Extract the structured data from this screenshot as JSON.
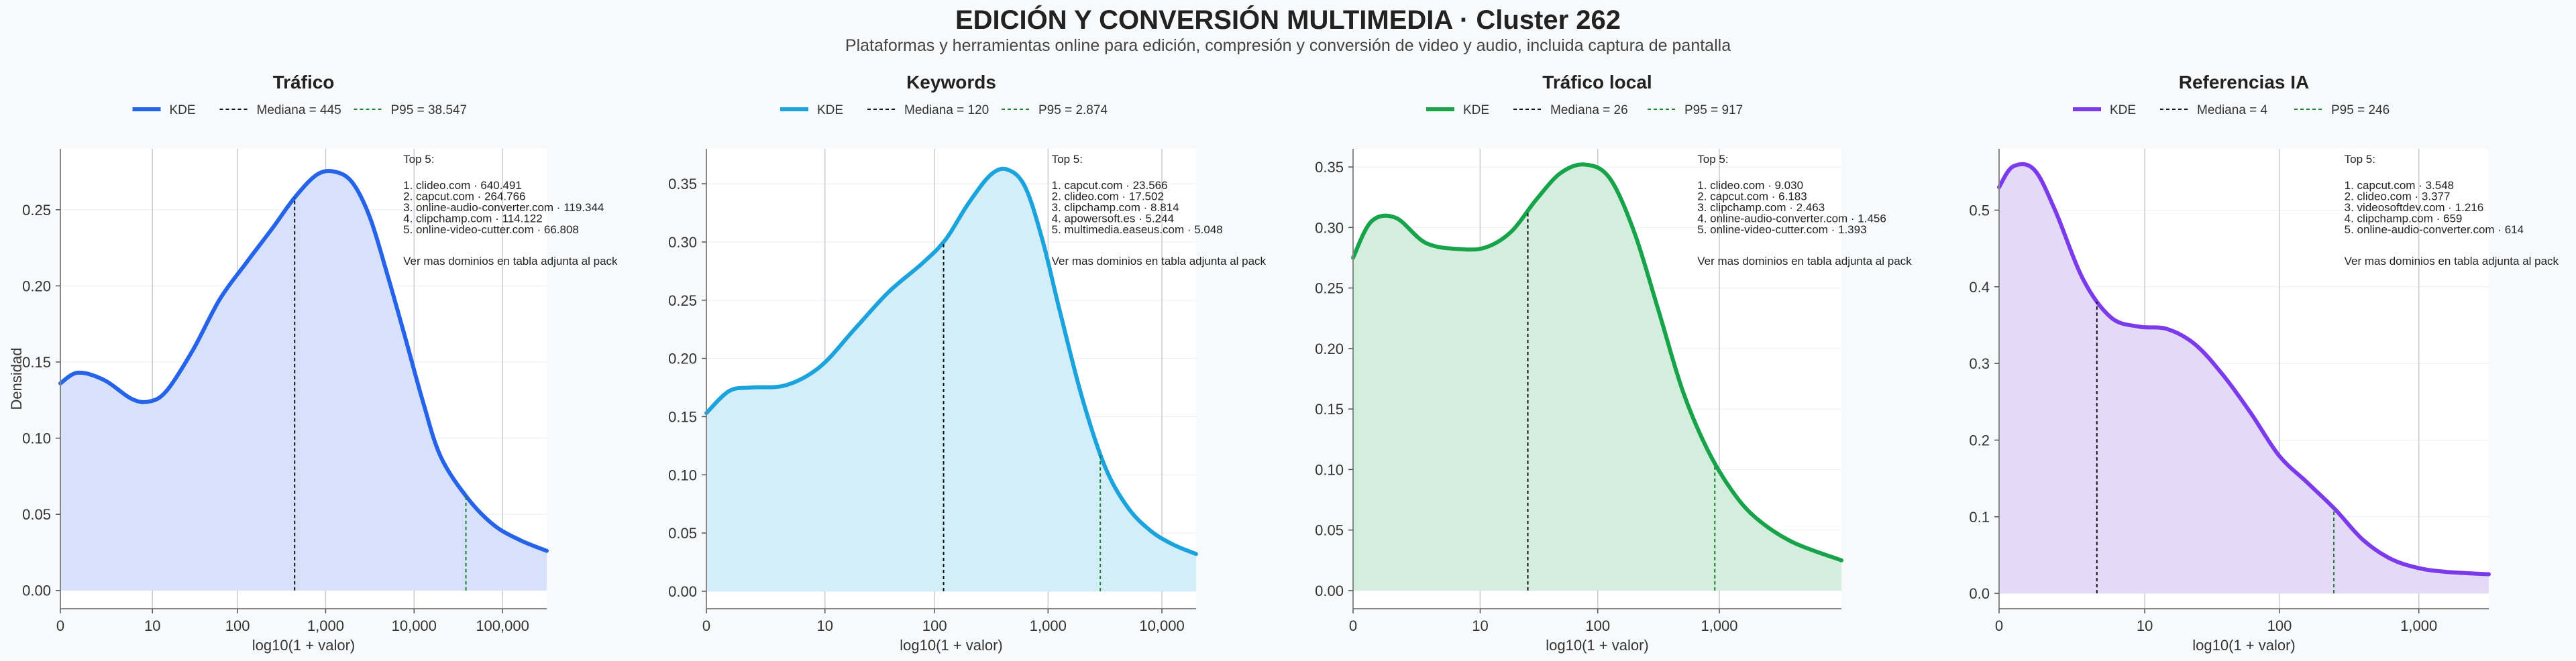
{
  "title": "EDICIÓN Y CONVERSIÓN MULTIMEDIA · Cluster 262",
  "subtitle": "Plataformas y herramientas online para edición, compresión y conversión de video y audio, incluida captura de pantalla",
  "ylabel": "Densidad",
  "xlabel": "log10(1 + valor)",
  "legend_labels": [
    "KDE",
    "Mediana",
    "P95"
  ],
  "top_heading": "Top 5:",
  "more_note": "Ver mas dominios en tabla adjunta al pack",
  "chart_data": [
    {
      "type": "area",
      "title": "Tráfico",
      "color": "#2563eb",
      "fill": "#d7e2fa",
      "legend": {
        "kde": "KDE",
        "median": "Mediana = 445",
        "p95": "P95 = 38.547"
      },
      "median": 445,
      "p95": 38547,
      "xlim": [
        0,
        5.5
      ],
      "ylim": [
        -0.012,
        0.29
      ],
      "x_ticks": [
        0,
        1.041,
        2.004,
        3,
        4,
        5
      ],
      "x_ticklabels": [
        "0",
        "10",
        "100",
        "1,000",
        "10,000",
        "100,000"
      ],
      "y_ticks": [
        0,
        0.05,
        0.1,
        0.15,
        0.2,
        0.25
      ],
      "y_ticklabels": [
        "0.00",
        "0.05",
        "0.10",
        "0.15",
        "0.20",
        "0.25"
      ],
      "kde_x": [
        0,
        0.2,
        0.5,
        0.8,
        1.0,
        1.2,
        1.5,
        1.8,
        2.1,
        2.4,
        2.65,
        2.9,
        3.1,
        3.3,
        3.5,
        3.7,
        3.9,
        4.1,
        4.3,
        4.6,
        4.9,
        5.2,
        5.5
      ],
      "kde_y": [
        0.136,
        0.143,
        0.138,
        0.126,
        0.124,
        0.131,
        0.158,
        0.191,
        0.215,
        0.238,
        0.258,
        0.273,
        0.275,
        0.268,
        0.245,
        0.207,
        0.166,
        0.124,
        0.088,
        0.061,
        0.043,
        0.033,
        0.026
      ],
      "top5": [
        "1. clideo.com · 640.491",
        "2. capcut.com · 264.766",
        "3. online-audio-converter.com · 119.344",
        "4. clipchamp.com · 114.122",
        "5. online-video-cutter.com · 66.808"
      ]
    },
    {
      "type": "area",
      "title": "Keywords",
      "color": "#1aa3dc",
      "fill": "#d3eef9",
      "legend": {
        "kde": "KDE",
        "median": "Mediana = 120",
        "p95": "P95 = 2.874"
      },
      "median": 120,
      "p95": 2874,
      "xlim": [
        0,
        4.3
      ],
      "ylim": [
        -0.015,
        0.38
      ],
      "x_ticks": [
        0,
        1.041,
        2.004,
        3,
        4
      ],
      "x_ticklabels": [
        "0",
        "10",
        "100",
        "1,000",
        "10,000"
      ],
      "y_ticks": [
        0,
        0.05,
        0.1,
        0.15,
        0.2,
        0.25,
        0.3,
        0.35
      ],
      "y_ticklabels": [
        "0.00",
        "0.05",
        "0.10",
        "0.15",
        "0.20",
        "0.25",
        "0.30",
        "0.35"
      ],
      "kde_x": [
        0,
        0.2,
        0.4,
        0.7,
        1.0,
        1.3,
        1.6,
        1.9,
        2.1,
        2.3,
        2.5,
        2.65,
        2.8,
        2.95,
        3.1,
        3.3,
        3.5,
        3.7,
        3.9,
        4.1,
        4.3
      ],
      "kde_y": [
        0.153,
        0.172,
        0.175,
        0.177,
        0.193,
        0.225,
        0.257,
        0.282,
        0.302,
        0.333,
        0.358,
        0.362,
        0.347,
        0.302,
        0.242,
        0.166,
        0.107,
        0.072,
        0.052,
        0.04,
        0.032
      ],
      "top5": [
        "1. capcut.com · 23.566",
        "2. clideo.com · 17.502",
        "3. clipchamp.com · 8.814",
        "4. apowersoft.es · 5.244",
        "5. multimedia.easeus.com · 5.048"
      ]
    },
    {
      "type": "area",
      "title": "Tráfico local",
      "color": "#16a34a",
      "fill": "#d3eedc",
      "legend": {
        "kde": "KDE",
        "median": "Mediana = 26",
        "p95": "P95 = 917"
      },
      "median": 26,
      "p95": 917,
      "xlim": [
        0,
        4.0
      ],
      "ylim": [
        -0.015,
        0.365
      ],
      "x_ticks": [
        0,
        1.041,
        2.004,
        3
      ],
      "x_ticklabels": [
        "0",
        "10",
        "100",
        "1,000"
      ],
      "y_ticks": [
        0,
        0.05,
        0.1,
        0.15,
        0.2,
        0.25,
        0.3,
        0.35
      ],
      "y_ticklabels": [
        "0.00",
        "0.05",
        "0.10",
        "0.15",
        "0.20",
        "0.25",
        "0.30",
        "0.35"
      ],
      "kde_x": [
        0,
        0.15,
        0.35,
        0.6,
        0.9,
        1.1,
        1.3,
        1.5,
        1.7,
        1.9,
        2.1,
        2.3,
        2.5,
        2.7,
        2.9,
        3.1,
        3.3,
        3.6,
        4.0
      ],
      "kde_y": [
        0.275,
        0.305,
        0.308,
        0.287,
        0.282,
        0.284,
        0.297,
        0.323,
        0.345,
        0.352,
        0.341,
        0.297,
        0.232,
        0.165,
        0.117,
        0.083,
        0.06,
        0.04,
        0.025
      ],
      "top5": [
        "1. clideo.com · 9.030",
        "2. capcut.com · 6.183",
        "3. clipchamp.com · 2.463",
        "4. online-audio-converter.com · 1.456",
        "5. online-video-cutter.com · 1.393"
      ]
    },
    {
      "type": "area",
      "title": "Referencias IA",
      "color": "#7c3aed",
      "fill": "#e4d9f7",
      "legend": {
        "kde": "KDE",
        "median": "Mediana = 4",
        "p95": "P95 = 246"
      },
      "median": 4,
      "p95": 246,
      "xlim": [
        0,
        3.5
      ],
      "ylim": [
        -0.02,
        0.58
      ],
      "x_ticks": [
        0,
        1.041,
        2.004,
        3
      ],
      "x_ticklabels": [
        "0",
        "10",
        "100",
        "1,000"
      ],
      "y_ticks": [
        0,
        0.1,
        0.2,
        0.3,
        0.4,
        0.5
      ],
      "y_ticklabels": [
        "0.0",
        "0.1",
        "0.2",
        "0.3",
        "0.4",
        "0.5"
      ],
      "kde_x": [
        0,
        0.1,
        0.25,
        0.4,
        0.6,
        0.8,
        1.0,
        1.2,
        1.4,
        1.6,
        1.8,
        2.0,
        2.2,
        2.4,
        2.6,
        2.8,
        3.0,
        3.2,
        3.5
      ],
      "kde_y": [
        0.53,
        0.557,
        0.553,
        0.5,
        0.41,
        0.36,
        0.348,
        0.345,
        0.325,
        0.285,
        0.235,
        0.18,
        0.145,
        0.11,
        0.07,
        0.045,
        0.033,
        0.028,
        0.025
      ],
      "top5": [
        "1. capcut.com · 3.548",
        "2. clideo.com · 3.377",
        "3. videosoftdev.com · 1.216",
        "4. clipchamp.com · 659",
        "5. online-audio-converter.com · 614"
      ]
    }
  ]
}
